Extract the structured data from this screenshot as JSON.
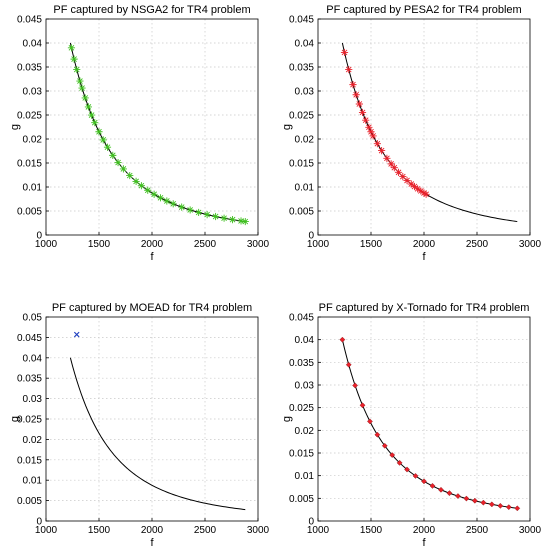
{
  "chart_data": [
    {
      "type": "scatter",
      "title": "PF captured by NSGA2  for TR4 problem",
      "xlabel": "f",
      "ylabel": "g",
      "xlim": [
        1000,
        3000
      ],
      "ylim": [
        0,
        0.045
      ],
      "xticks": [
        "1000",
        "1500",
        "2000",
        "2500",
        "3000"
      ],
      "yticks": [
        "0",
        "0.005",
        "0.01",
        "0.015",
        "0.02",
        "0.025",
        "0.03",
        "0.035",
        "0.04",
        "0.045"
      ],
      "grid": true,
      "reference_curve": {
        "x_range": [
          1230,
          2880
        ],
        "g_at_xmin": 0.04,
        "g_at_xmax": 0.0028
      },
      "marker": {
        "symbol": "asterisk",
        "color": "#3fbf1f"
      },
      "points_x": [
        1240,
        1265,
        1290,
        1320,
        1340,
        1370,
        1400,
        1430,
        1460,
        1500,
        1540,
        1580,
        1630,
        1680,
        1730,
        1790,
        1850,
        1900,
        1960,
        2020,
        2080,
        2140,
        2200,
        2280,
        2360,
        2440,
        2520,
        2600,
        2680,
        2760,
        2840,
        2880
      ]
    },
    {
      "type": "scatter",
      "title": "PF captured by PESA2  for TR4 problem",
      "xlabel": "f",
      "ylabel": "g",
      "xlim": [
        1000,
        3000
      ],
      "ylim": [
        0,
        0.045
      ],
      "xticks": [
        "1000",
        "1500",
        "2000",
        "2500",
        "3000"
      ],
      "yticks": [
        "0",
        "0.005",
        "0.01",
        "0.015",
        "0.02",
        "0.025",
        "0.03",
        "0.035",
        "0.04",
        "0.045"
      ],
      "grid": true,
      "reference_curve": {
        "x_range": [
          1230,
          2880
        ],
        "g_at_xmin": 0.04,
        "g_at_xmax": 0.0028
      },
      "marker": {
        "symbol": "asterisk",
        "color": "#e8202a"
      },
      "points_x": [
        1250,
        1290,
        1330,
        1360,
        1390,
        1420,
        1450,
        1480,
        1500,
        1520,
        1560,
        1600,
        1650,
        1690,
        1720,
        1760,
        1800,
        1840,
        1880,
        1910,
        1940,
        1970,
        2000,
        2020
      ]
    },
    {
      "type": "scatter",
      "title": "PF captured by MOEAD for TR4 problem",
      "xlabel": "f",
      "ylabel": "g",
      "xlim": [
        1000,
        3000
      ],
      "ylim": [
        0,
        0.05
      ],
      "xticks": [
        "1000",
        "1500",
        "2000",
        "2500",
        "3000"
      ],
      "yticks": [
        "0",
        "0.005",
        "0.01",
        "0.015",
        "0.02",
        "0.025",
        "0.03",
        "0.035",
        "0.04",
        "0.045",
        "0.05"
      ],
      "grid": true,
      "reference_curve": {
        "x_range": [
          1230,
          2880
        ],
        "g_at_xmin": 0.04,
        "g_at_xmax": 0.0028
      },
      "marker": {
        "symbol": "x",
        "color": "#1f3fbf"
      },
      "points": [
        {
          "x": 1290,
          "y": 0.0457
        }
      ]
    },
    {
      "type": "scatter",
      "title": "PF captured by X-Tornado for TR4 problem",
      "xlabel": "f",
      "ylabel": "g",
      "xlim": [
        1000,
        3000
      ],
      "ylim": [
        0,
        0.045
      ],
      "xticks": [
        "1000",
        "1500",
        "2000",
        "2500",
        "3000"
      ],
      "yticks": [
        "0",
        "0.005",
        "0.01",
        "0.015",
        "0.02",
        "0.025",
        "0.03",
        "0.035",
        "0.04",
        "0.045"
      ],
      "grid": true,
      "reference_curve": {
        "x_range": [
          1230,
          2880
        ],
        "g_at_xmin": 0.04,
        "g_at_xmax": 0.0028
      },
      "marker": {
        "symbol": "diamond",
        "color": "#e8202a"
      },
      "points_x": [
        1230,
        1290,
        1350,
        1420,
        1490,
        1560,
        1630,
        1700,
        1770,
        1840,
        1920,
        2000,
        2080,
        2160,
        2240,
        2320,
        2400,
        2480,
        2560,
        2640,
        2720,
        2800,
        2880
      ]
    }
  ]
}
